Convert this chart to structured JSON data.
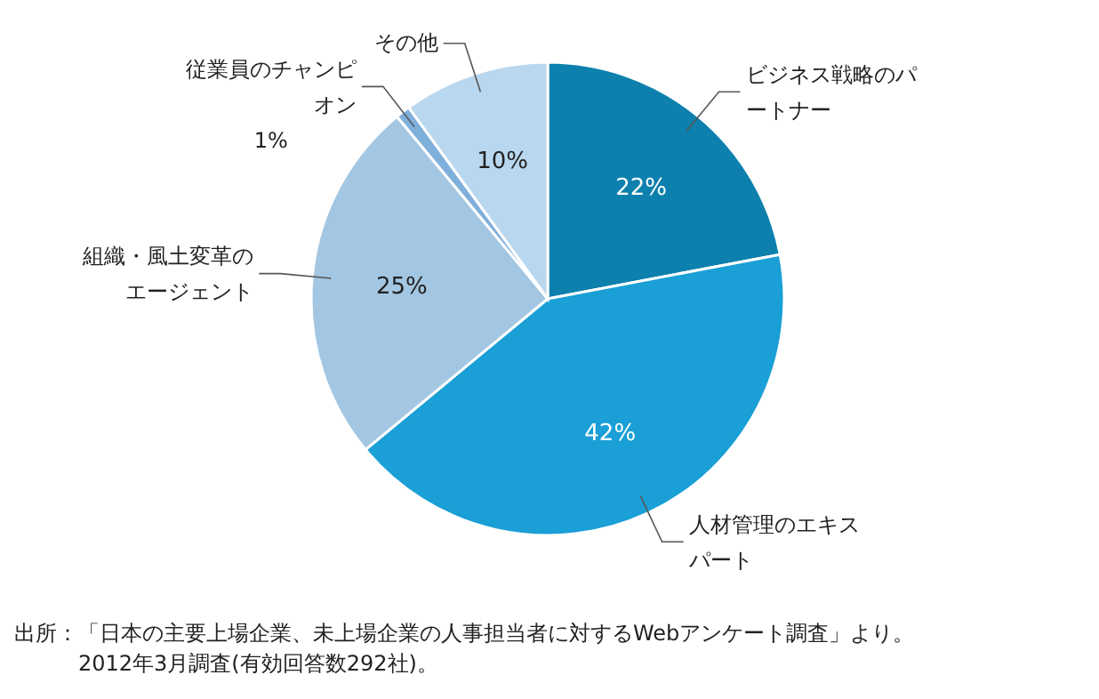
{
  "chart_data": {
    "type": "pie",
    "categories": [
      "ビジネス戦略のパートナー",
      "人材管理のエキスパート",
      "組織・風土変革のエージェント",
      "従業員のチャンピオン",
      "その他"
    ],
    "values": [
      22,
      42,
      25,
      1,
      10
    ],
    "colors": [
      "#0e80ad",
      "#1a9fd6",
      "#a3c7e3",
      "#7fb0dc",
      "#b9d7ee"
    ],
    "data_labels": true,
    "value_labels": [
      "22%",
      "42%",
      "25%",
      "1%",
      "10%"
    ],
    "annotations": [
      "出所：「日本の主要上場企業、未上場企業の人事担当者に対するWebアンケート調査」より。",
      "2012年3月調査(有効回答数292社)。"
    ]
  }
}
